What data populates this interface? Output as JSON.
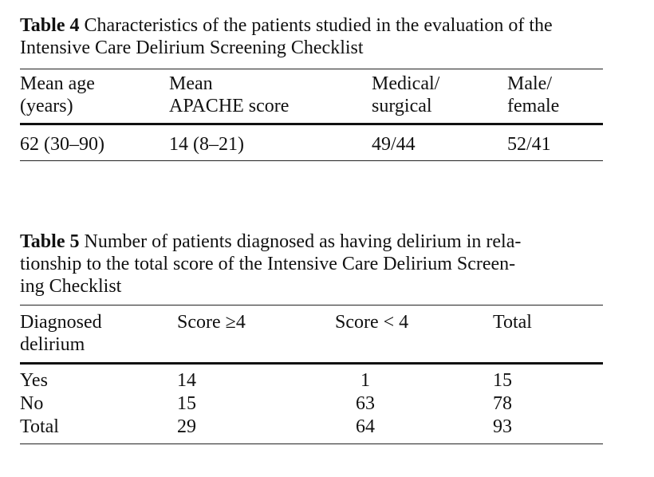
{
  "table4": {
    "label": "Table 4",
    "caption": " Characteristics of the patients studied in the evaluation of the Intensive Care Delirium Screening Checklist",
    "headers": [
      [
        "Mean age",
        "(years)"
      ],
      [
        "Mean",
        "APACHE score"
      ],
      [
        "Medical/",
        "surgical"
      ],
      [
        "Male/",
        "female"
      ]
    ],
    "rows": [
      [
        "62 (30–90)",
        "14 (8–21)",
        "49/44",
        "52/41"
      ]
    ]
  },
  "table5": {
    "label": "Table 5",
    "caption": " Number of patients diagnosed as having delirium in relationship to the total score of the Intensive Care Delirium Screening Checklist",
    "caption_lines": [
      " Number of patients diagnosed as having delirium in rela-",
      "tionship to the total score of the Intensive Care Delirium Screen-",
      "ing Checklist"
    ],
    "headers": [
      [
        "Diagnosed",
        "delirium"
      ],
      [
        "Score ≥4"
      ],
      [
        "Score < 4"
      ],
      [
        "Total"
      ]
    ],
    "rows": [
      [
        "Yes",
        "14",
        "1",
        "15"
      ],
      [
        "No",
        "15",
        "63",
        "78"
      ],
      [
        "Total",
        "29",
        "64",
        "93"
      ]
    ]
  }
}
